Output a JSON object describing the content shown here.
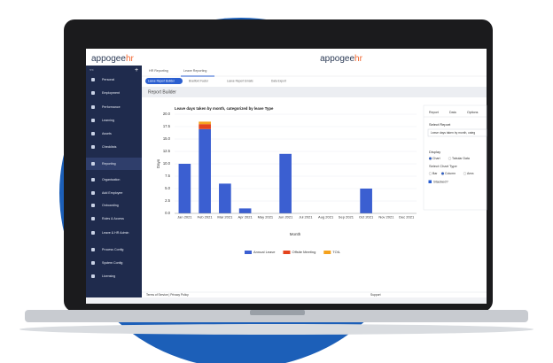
{
  "header": {
    "logo_main": "appogee",
    "logo_accent": "hr"
  },
  "sidebar": {
    "collapse": "<<",
    "add": "+",
    "items": [
      "Personal",
      "Employment",
      "Performance",
      "Learning",
      "Assets",
      "Checklists",
      "Reporting",
      "Organisation",
      "Add Employee",
      "Onboarding",
      "Roles & Access",
      "Leave & HR Admin",
      "Process Config",
      "System Config",
      "Licensing"
    ]
  },
  "tabs": [
    "HR Reporting",
    "Leave Reporting"
  ],
  "subtabs": [
    "Leave Report Builder",
    "Bradford Factor",
    "Leave Report Emails",
    "Data Export"
  ],
  "page_title": "Report Builder",
  "panel": {
    "tabs": [
      "Report",
      "Data",
      "Options"
    ],
    "select_report_label": "Select Report",
    "select_report_value": "Leave days taken by month, categ",
    "display_label": "Display",
    "display_options": [
      "Chart",
      "Tabular Data"
    ],
    "chart_type_label": "Select Chart Type",
    "chart_type_options": [
      "Bar",
      "Column",
      "Area"
    ],
    "stacked_label": "Stacked?"
  },
  "footer": {
    "left": "Terms of Service | Privacy Policy",
    "right": "Support"
  },
  "chart_data": {
    "type": "bar",
    "stacked": true,
    "title": "Leave days taken by month, categorized by leave Type",
    "x_label": "Month",
    "y_label": "Days",
    "categories": [
      "Jan 2021",
      "Feb 2021",
      "Mar 2021",
      "Apr 2021",
      "May 2021",
      "Jun 2021",
      "Jul 2021",
      "Aug 2021",
      "Sep 2021",
      "Oct 2021",
      "Nov 2021",
      "Dec 2021"
    ],
    "series": [
      {
        "name": "Annual Leave",
        "color": "#3b5fd1",
        "values": [
          10,
          17,
          6,
          1,
          0,
          12,
          0,
          0,
          0,
          5,
          0,
          0
        ]
      },
      {
        "name": "Offsite Meeting",
        "color": "#e4431d",
        "values": [
          0,
          1,
          0,
          0,
          0,
          0,
          0,
          0,
          0,
          0,
          0,
          0
        ]
      },
      {
        "name": "TOIL",
        "color": "#f5a21d",
        "values": [
          0,
          0.5,
          0,
          0,
          0,
          0,
          0,
          0,
          0,
          0,
          0,
          0
        ]
      }
    ],
    "ylim": [
      0,
      20
    ],
    "yticks": [
      {
        "value": 0,
        "label": "0.0"
      },
      2.5,
      {
        "value": 5,
        "label": "5.0"
      },
      7.5,
      {
        "value": 10,
        "label": "10.0"
      },
      12.5,
      {
        "value": 15,
        "label": "15.0"
      },
      17.5,
      {
        "value": 20,
        "label": "20.0"
      }
    ],
    "grid": true,
    "legend": "bottom"
  }
}
